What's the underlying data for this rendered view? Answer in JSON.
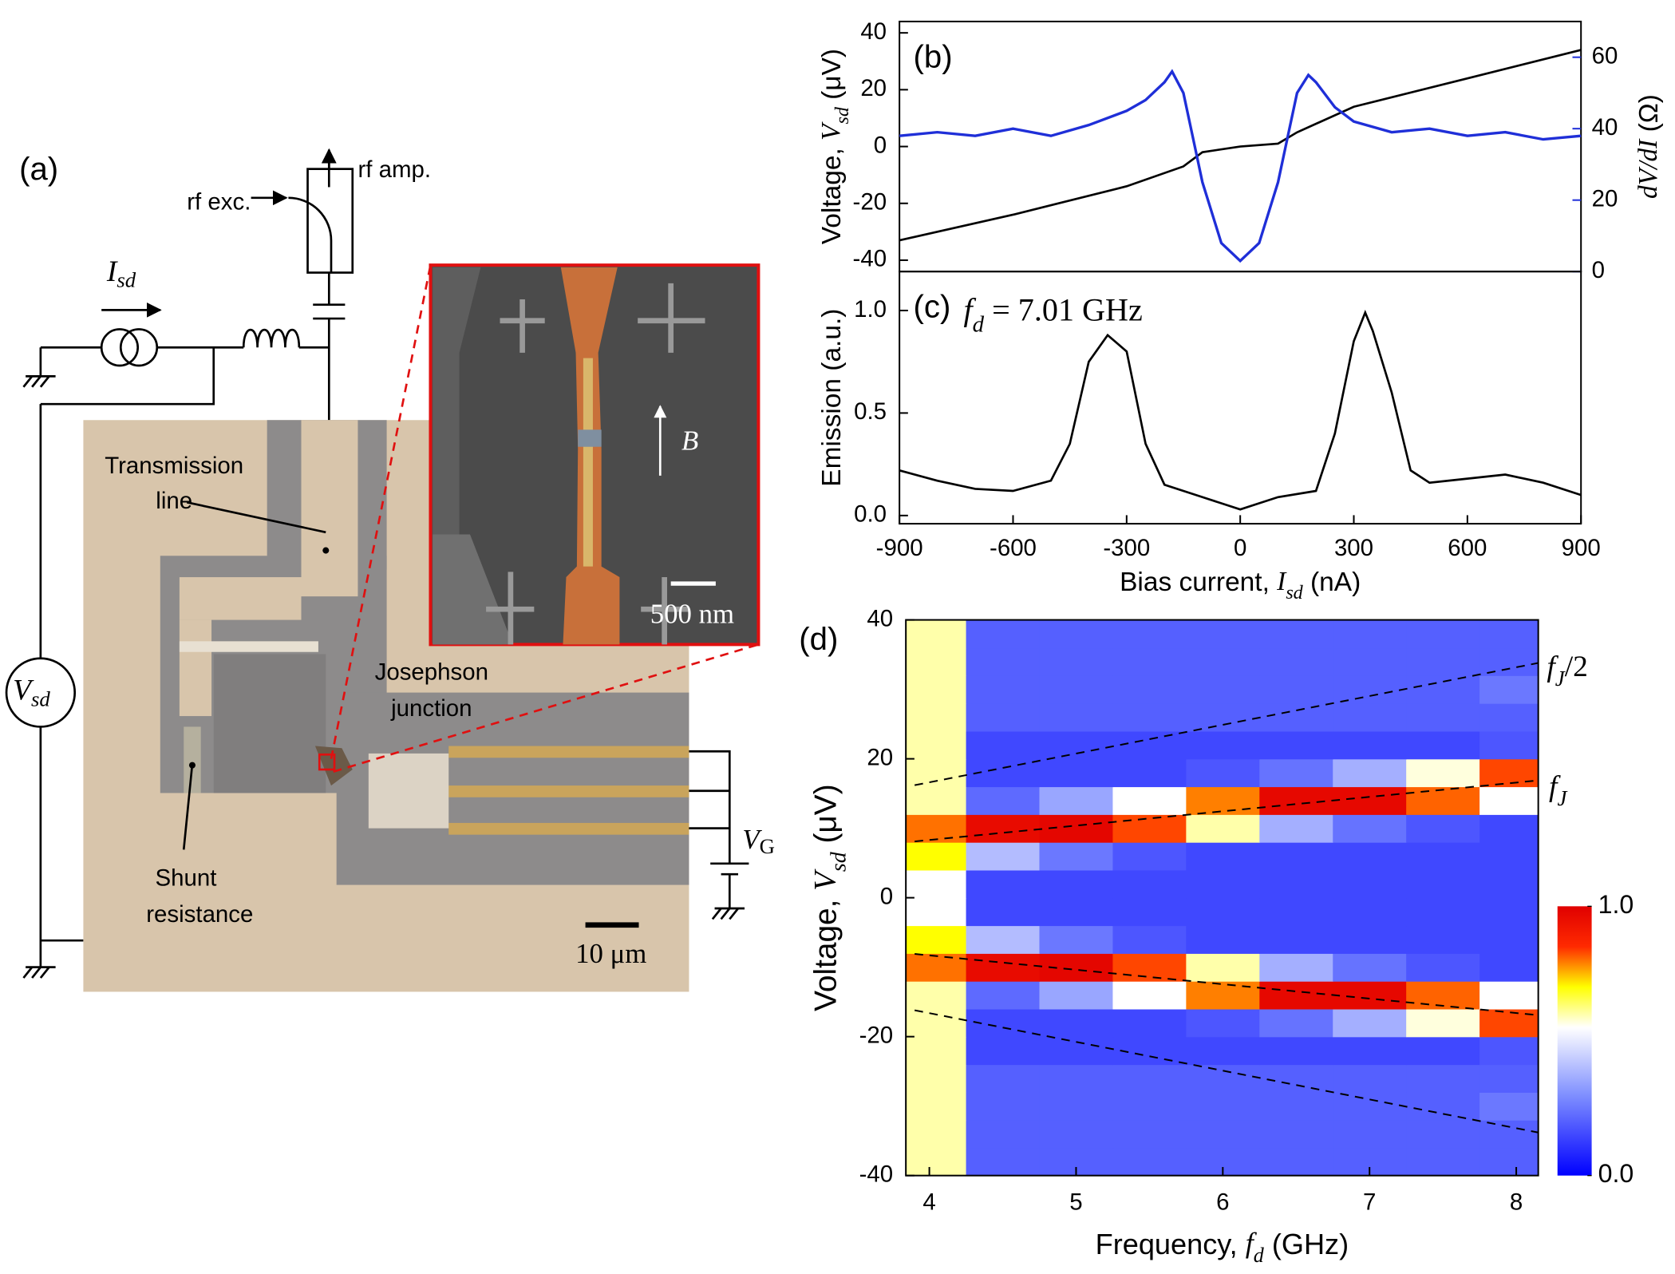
{
  "panel_a": {
    "label": "(a)",
    "rf_amp": "rf amp.",
    "rf_exc": "rf exc.",
    "current": [
      "I",
      "sd"
    ],
    "voltmeter": [
      "V",
      "sd"
    ],
    "transmission": [
      "Transmission",
      "line"
    ],
    "junction": [
      "Josephson",
      "junction"
    ],
    "shunt": [
      "Shunt",
      "resistance"
    ],
    "gate": [
      "V",
      "G"
    ],
    "scale_large": "10 μm",
    "scale_small": "500 nm",
    "field": "B"
  },
  "chart_data": [
    {
      "type": "line",
      "label": "(b)",
      "xlim": [
        -900,
        900
      ],
      "ylim": [
        -44,
        44
      ],
      "yticks": [
        -40,
        -20,
        0,
        20,
        40
      ],
      "y2lim": [
        0,
        70
      ],
      "y2ticks": [
        0,
        20,
        40,
        60
      ],
      "ylabel": [
        "Voltage, ",
        "V",
        "sd",
        " (μV)"
      ],
      "y2label": [
        "dV",
        "/",
        "dI",
        " (Ω)"
      ],
      "series": [
        {
          "color": "#000000",
          "x": [
            -900,
            -600,
            -300,
            -150,
            -100,
            0,
            100,
            150,
            300,
            600,
            900
          ],
          "values": [
            -33,
            -24,
            -14,
            -7,
            -2,
            0,
            1,
            5,
            14,
            24,
            34
          ]
        },
        {
          "color": "#1f2fd8",
          "axis": "y2",
          "x": [
            -900,
            -800,
            -700,
            -600,
            -500,
            -400,
            -300,
            -250,
            -200,
            -180,
            -150,
            -120,
            -100,
            -50,
            0,
            50,
            100,
            120,
            150,
            180,
            200,
            250,
            300,
            400,
            500,
            600,
            700,
            800,
            900
          ],
          "values": [
            38,
            39,
            38,
            40,
            38,
            41,
            45,
            48,
            53,
            56,
            50,
            35,
            25,
            8,
            3,
            8,
            25,
            35,
            50,
            55,
            53,
            46,
            42,
            39,
            40,
            38,
            39,
            37,
            38
          ]
        }
      ]
    },
    {
      "type": "line",
      "label": "(c)",
      "annotation": [
        "f",
        "d",
        " = 7.01 GHz"
      ],
      "xlim": [
        -900,
        900
      ],
      "xticks": [
        -900,
        -600,
        -300,
        0,
        300,
        600,
        900
      ],
      "ylim": [
        -0.04,
        1.19
      ],
      "yticks": [
        {
          "value": 0,
          "label": "0.0"
        },
        {
          "value": 0.5,
          "label": "0.5"
        },
        {
          "value": 1,
          "label": "1.0"
        }
      ],
      "xlabel": [
        "Bias current, ",
        "I",
        "sd",
        " (nA)"
      ],
      "ylabel": "Emission (a.u.)",
      "series": [
        {
          "color": "#000000",
          "x": [
            -900,
            -800,
            -700,
            -600,
            -500,
            -450,
            -400,
            -350,
            -300,
            -250,
            -200,
            -100,
            0,
            100,
            200,
            250,
            300,
            330,
            350,
            400,
            450,
            500,
            600,
            700,
            800,
            900
          ],
          "values": [
            0.22,
            0.17,
            0.13,
            0.12,
            0.17,
            0.35,
            0.75,
            0.88,
            0.8,
            0.35,
            0.15,
            0.09,
            0.03,
            0.09,
            0.12,
            0.4,
            0.85,
            0.99,
            0.9,
            0.6,
            0.22,
            0.16,
            0.18,
            0.2,
            0.16,
            0.1
          ]
        }
      ]
    },
    {
      "type": "heatmap",
      "label": "(d)",
      "xlim": [
        3.84,
        8.15
      ],
      "xticks": [
        4,
        5,
        6,
        7,
        8
      ],
      "ylim": [
        -40,
        40
      ],
      "yticks": [
        -40,
        -20,
        0,
        20,
        40
      ],
      "xlabel": [
        "Frequency, ",
        "f",
        "d",
        " (GHz)"
      ],
      "ylabel": [
        "Voltage, ",
        "V",
        "sd",
        " (μV)"
      ],
      "x": [
        4,
        4.5,
        5,
        5.5,
        6,
        6.5,
        7,
        7.5,
        8
      ],
      "y": [
        -38,
        -34,
        -30,
        -26,
        -22,
        -18,
        -14,
        -10,
        -6,
        -2,
        2,
        6,
        10,
        14,
        18,
        22,
        26,
        30,
        34,
        38
      ],
      "z": [
        [
          0.6,
          0.2,
          0.2,
          0.2,
          0.2,
          0.2,
          0.2,
          0.2,
          0.2
        ],
        [
          0.6,
          0.2,
          0.2,
          0.2,
          0.2,
          0.2,
          0.2,
          0.2,
          0.2
        ],
        [
          0.6,
          0.2,
          0.2,
          0.2,
          0.2,
          0.2,
          0.2,
          0.2,
          0.25
        ],
        [
          0.6,
          0.2,
          0.2,
          0.2,
          0.2,
          0.2,
          0.2,
          0.2,
          0.2
        ],
        [
          0.6,
          0.15,
          0.15,
          0.15,
          0.15,
          0.15,
          0.15,
          0.15,
          0.18
        ],
        [
          0.6,
          0.15,
          0.15,
          0.15,
          0.18,
          0.24,
          0.37,
          0.57,
          0.83
        ],
        [
          0.6,
          0.22,
          0.35,
          0.55,
          0.79,
          0.97,
          0.97,
          0.81,
          0.55
        ],
        [
          0.8,
          0.96,
          0.98,
          0.83,
          0.6,
          0.37,
          0.24,
          0.18,
          0.15
        ],
        [
          0.7,
          0.4,
          0.25,
          0.18,
          0.15,
          0.15,
          0.15,
          0.15,
          0.15
        ],
        [
          0.55,
          0.15,
          0.15,
          0.15,
          0.15,
          0.15,
          0.15,
          0.15,
          0.15
        ],
        [
          0.55,
          0.15,
          0.15,
          0.15,
          0.15,
          0.15,
          0.15,
          0.15,
          0.15
        ],
        [
          0.7,
          0.4,
          0.25,
          0.18,
          0.15,
          0.15,
          0.15,
          0.15,
          0.15
        ],
        [
          0.8,
          0.96,
          0.98,
          0.83,
          0.6,
          0.37,
          0.24,
          0.18,
          0.15
        ],
        [
          0.6,
          0.22,
          0.35,
          0.55,
          0.79,
          0.97,
          0.97,
          0.81,
          0.55
        ],
        [
          0.6,
          0.15,
          0.15,
          0.15,
          0.18,
          0.24,
          0.37,
          0.57,
          0.83
        ],
        [
          0.6,
          0.15,
          0.15,
          0.15,
          0.15,
          0.15,
          0.15,
          0.15,
          0.18
        ],
        [
          0.6,
          0.2,
          0.2,
          0.2,
          0.2,
          0.2,
          0.2,
          0.2,
          0.2
        ],
        [
          0.6,
          0.2,
          0.2,
          0.2,
          0.2,
          0.2,
          0.2,
          0.2,
          0.25
        ],
        [
          0.6,
          0.2,
          0.2,
          0.2,
          0.2,
          0.2,
          0.2,
          0.2,
          0.2
        ],
        [
          0.6,
          0.2,
          0.2,
          0.2,
          0.2,
          0.2,
          0.2,
          0.2,
          0.2
        ]
      ],
      "colorscale": [
        [
          0,
          "#0000ff"
        ],
        [
          0.3,
          "#8090ff"
        ],
        [
          0.55,
          "#ffffff"
        ],
        [
          0.7,
          "#ffff00"
        ],
        [
          0.85,
          "#ff2a00"
        ],
        [
          1,
          "#e00000"
        ]
      ],
      "colorbar_ticks": [
        {
          "value": 0,
          "label": "0.0"
        },
        {
          "value": 1,
          "label": "1.0"
        }
      ],
      "lines": [
        {
          "color": "#000000",
          "x": [
            3.9,
            8.15
          ],
          "values": [
            8.1,
            16.9
          ]
        },
        {
          "color": "#000000",
          "x": [
            3.9,
            8.15
          ],
          "values": [
            -8.1,
            -16.9
          ]
        },
        {
          "color": "#000000",
          "x": [
            3.9,
            8.15
          ],
          "values": [
            16.2,
            33.8
          ]
        },
        {
          "color": "#000000",
          "x": [
            3.9,
            8.15
          ],
          "values": [
            -16.2,
            -33.8
          ]
        }
      ],
      "annotations": {
        "half": [
          "f",
          "J",
          "/2"
        ],
        "full": [
          "f",
          "J"
        ]
      }
    }
  ]
}
